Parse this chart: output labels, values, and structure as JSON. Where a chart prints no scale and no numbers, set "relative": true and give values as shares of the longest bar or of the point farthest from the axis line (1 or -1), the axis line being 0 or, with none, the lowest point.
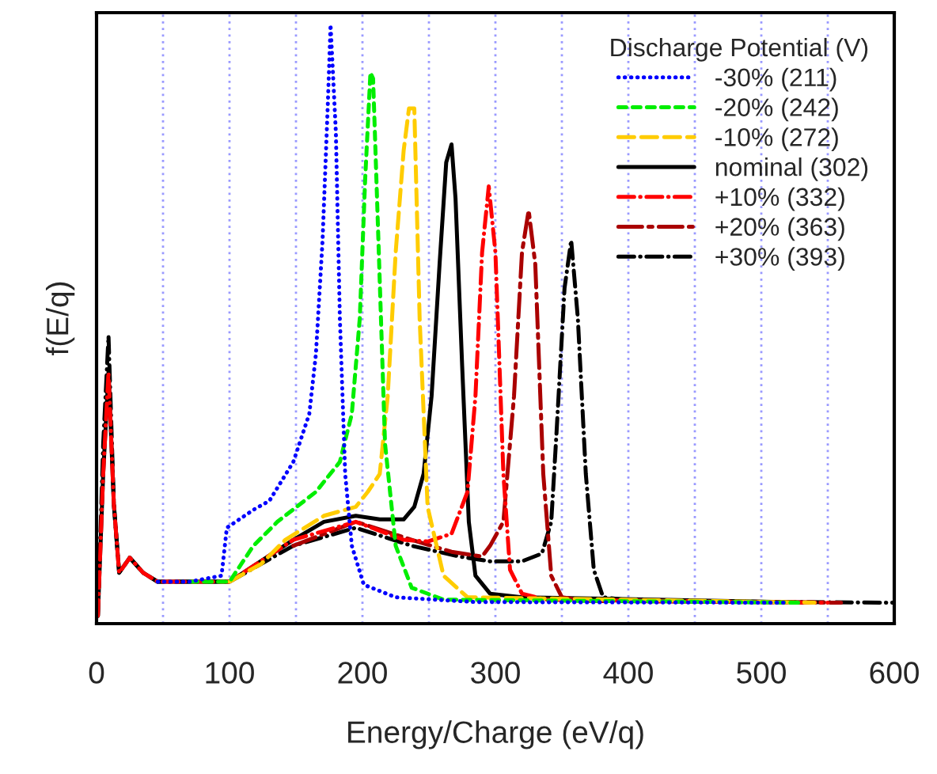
{
  "chart_data": {
    "type": "line",
    "xlabel": "Energy/Charge (eV/q)",
    "ylabel": "f(E/q)",
    "legend_title": "Discharge Potential (V)",
    "legend": "top right",
    "grid": "x",
    "relative": true,
    "xlim": [
      0,
      600
    ],
    "xticks": [
      0,
      {
        "value": 50,
        "label": null
      },
      100,
      {
        "value": 150,
        "label": null
      },
      200,
      {
        "value": 250,
        "label": null
      },
      300,
      {
        "value": 350,
        "label": null
      },
      400,
      {
        "value": 450,
        "label": null
      },
      500,
      {
        "value": 550,
        "label": null
      },
      600
    ],
    "series": [
      {
        "name": "-30% (211)",
        "color": "#0000ff",
        "line_style": "dotted",
        "x": [
          46,
          70,
          94,
          98,
          118,
          130,
          148,
          160,
          165,
          170,
          174,
          176,
          180,
          183,
          187,
          192,
          201,
          225,
          285,
          520
        ],
        "values": [
          0.07,
          0.07,
          0.08,
          0.16,
          0.19,
          0.205,
          0.27,
          0.35,
          0.45,
          0.64,
          0.87,
          1.0,
          0.82,
          0.51,
          0.25,
          0.13,
          0.065,
          0.044,
          0.036,
          0.035
        ]
      },
      {
        "name": "-20% (242)",
        "color": "#00ee00",
        "line_style": "dashed",
        "x": [
          70,
          100,
          118,
          136,
          165,
          183,
          192,
          198,
          202,
          206,
          208,
          212,
          217,
          225,
          237,
          261,
          530
        ],
        "values": [
          0.07,
          0.07,
          0.13,
          0.17,
          0.22,
          0.27,
          0.35,
          0.51,
          0.74,
          0.92,
          0.91,
          0.64,
          0.3,
          0.13,
          0.06,
          0.04,
          0.035
        ]
      },
      {
        "name": "-10% (272)",
        "color": "#ffcc00",
        "line_style": "longdashed",
        "x": [
          100,
          124,
          142,
          171,
          195,
          204,
          213,
          219,
          225,
          231,
          235,
          239,
          243,
          249,
          261,
          279,
          540
        ],
        "values": [
          0.07,
          0.1,
          0.14,
          0.18,
          0.195,
          0.22,
          0.25,
          0.38,
          0.62,
          0.79,
          0.86,
          0.86,
          0.51,
          0.195,
          0.08,
          0.044,
          0.035
        ]
      },
      {
        "name": "nominal (302)",
        "color": "#000000",
        "line_style": "solid",
        "x": [
          1,
          5,
          9,
          13,
          17,
          25,
          35,
          46,
          70,
          100,
          148,
          171,
          195,
          213,
          231,
          239,
          246,
          252,
          258,
          263,
          267,
          270,
          275,
          280,
          285,
          296,
          320,
          540
        ],
        "values": [
          0.013,
          0.25,
          0.42,
          0.2,
          0.085,
          0.11,
          0.085,
          0.07,
          0.07,
          0.07,
          0.14,
          0.17,
          0.18,
          0.174,
          0.174,
          0.195,
          0.25,
          0.38,
          0.6,
          0.77,
          0.8,
          0.71,
          0.43,
          0.17,
          0.08,
          0.05,
          0.044,
          0.035
        ]
      },
      {
        "name": "+10% (332)",
        "color": "#ff0000",
        "line_style": "dashdot",
        "x": [
          1,
          5,
          9,
          13,
          17,
          25,
          35,
          46,
          70,
          100,
          148,
          195,
          231,
          249,
          267,
          279,
          285,
          290,
          295,
          300,
          306,
          311,
          320,
          338,
          550
        ],
        "values": [
          0.013,
          0.25,
          0.42,
          0.2,
          0.085,
          0.11,
          0.085,
          0.07,
          0.07,
          0.07,
          0.14,
          0.17,
          0.14,
          0.137,
          0.15,
          0.22,
          0.38,
          0.62,
          0.73,
          0.62,
          0.25,
          0.09,
          0.05,
          0.04,
          0.035
        ]
      },
      {
        "name": "+20% (363)",
        "color": "#aa0000",
        "line_style": "longdashdot",
        "x": [
          148,
          195,
          237,
          267,
          290,
          296,
          306,
          314,
          320,
          325,
          330,
          336,
          342,
          350,
          368,
          560
        ],
        "values": [
          0.13,
          0.17,
          0.14,
          0.12,
          0.112,
          0.13,
          0.17,
          0.38,
          0.62,
          0.69,
          0.6,
          0.25,
          0.08,
          0.044,
          0.038,
          0.035
        ]
      },
      {
        "name": "+30% (393)",
        "color": "#000000",
        "line_style": "dashdot",
        "x": [
          1,
          5,
          9,
          13,
          17,
          25,
          35,
          46,
          70,
          100,
          148,
          195,
          237,
          273,
          296,
          320,
          335,
          342,
          346,
          352,
          357,
          362,
          368,
          374,
          381,
          404,
          600
        ],
        "values": [
          0.013,
          0.3,
          0.48,
          0.2,
          0.085,
          0.11,
          0.085,
          0.07,
          0.07,
          0.07,
          0.13,
          0.16,
          0.13,
          0.112,
          0.104,
          0.104,
          0.117,
          0.17,
          0.32,
          0.56,
          0.64,
          0.51,
          0.25,
          0.09,
          0.044,
          0.038,
          0.035
        ]
      }
    ]
  }
}
